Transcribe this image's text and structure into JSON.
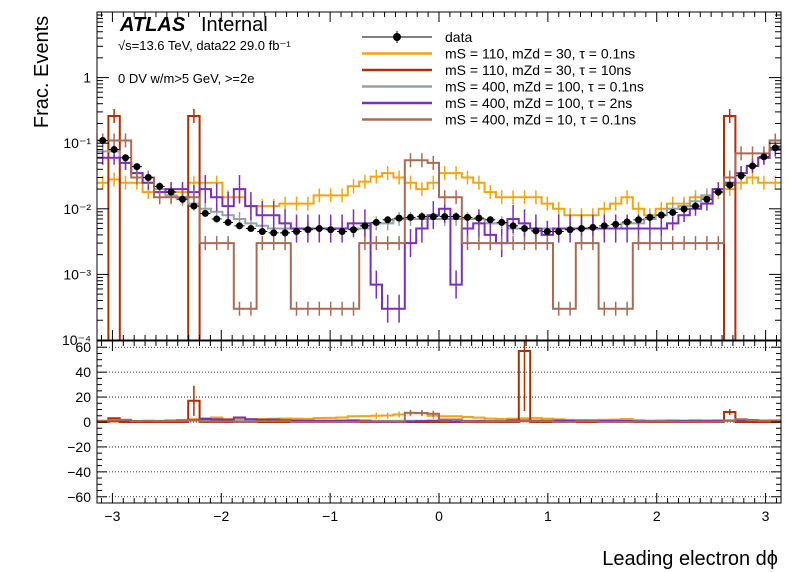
{
  "chart_data": {
    "type": "histogram",
    "experiment": "ATLAS",
    "status": "Internal",
    "info_line1": "√s=13.6 TeV, data22 29.0 fb⁻¹",
    "info_line2": "0 DV w/m>5 GeV, >=2e",
    "xlabel": "Leading electron dϕ",
    "ylabel": "Frac. Events",
    "xlim": [
      -3.1416,
      3.1416
    ],
    "x_ticks": [
      "−3",
      "−2",
      "−1",
      "0",
      "1",
      "2",
      "3"
    ],
    "x_tick_values": [
      -3,
      -2,
      -1,
      0,
      1,
      2,
      3
    ],
    "top_panel": {
      "yscale": "log",
      "ylim": [
        0.0001,
        10
      ],
      "y_ticks": [
        "1",
        "10⁻¹",
        "10⁻²",
        "10⁻³",
        "10⁻⁴"
      ]
    },
    "ratio_panel": {
      "ylim": [
        -65,
        65
      ],
      "y_ticks": [
        "60",
        "40",
        "20",
        "0",
        "−20",
        "−40",
        "−60"
      ],
      "y_tick_values": [
        60,
        40,
        20,
        0,
        -20,
        -40,
        -60
      ],
      "grid": "dotted"
    },
    "legend": [
      {
        "label": "data",
        "kind": "marker",
        "color": "#000000"
      },
      {
        "label": "mS = 110, mZd = 30, τ = 0.1ns",
        "kind": "line",
        "color": "#f2a511"
      },
      {
        "label": "mS = 110, mZd = 30, τ = 10ns",
        "kind": "line",
        "color": "#b22d00"
      },
      {
        "label": "mS = 400, mZd = 100, τ = 0.1ns",
        "kind": "line",
        "color": "#94a4a2"
      },
      {
        "label": "mS = 400, mZd = 100, τ = 2ns",
        "kind": "line",
        "color": "#7a2fbf"
      },
      {
        "label": "mS = 400, mZd = 10, τ = 0.1ns",
        "kind": "line",
        "color": "#a96b56"
      }
    ],
    "bins": 60,
    "series": [
      {
        "name": "data",
        "values": [
          0.11,
          0.08,
          0.06,
          0.044,
          0.03,
          0.022,
          0.018,
          0.014,
          0.011,
          0.0085,
          0.007,
          0.0062,
          0.0055,
          0.005,
          0.0045,
          0.0043,
          0.0043,
          0.0045,
          0.0048,
          0.005,
          0.0048,
          0.0045,
          0.0048,
          0.0055,
          0.0062,
          0.0068,
          0.0072,
          0.0074,
          0.0076,
          0.0076,
          0.0076,
          0.0076,
          0.0074,
          0.0072,
          0.0068,
          0.0062,
          0.0055,
          0.005,
          0.0046,
          0.0045,
          0.0045,
          0.0048,
          0.005,
          0.0052,
          0.0055,
          0.0058,
          0.0063,
          0.0068,
          0.0074,
          0.008,
          0.0088,
          0.0099,
          0.011,
          0.014,
          0.018,
          0.023,
          0.032,
          0.045,
          0.062,
          0.085
        ]
      },
      {
        "name": "mS = 110, mZd = 30, τ = 0.1ns",
        "values": [
          0.025,
          0.028,
          0.025,
          0.025,
          0.018,
          0.018,
          0.018,
          0.018,
          0.025,
          0.025,
          0.025,
          0.015,
          0.015,
          0.011,
          0.011,
          0.011,
          0.012,
          0.012,
          0.012,
          0.016,
          0.016,
          0.016,
          0.022,
          0.026,
          0.031,
          0.035,
          0.03,
          0.025,
          0.02,
          0.025,
          0.035,
          0.035,
          0.03,
          0.025,
          0.018,
          0.015,
          0.015,
          0.015,
          0.015,
          0.012,
          0.01,
          0.008,
          0.008,
          0.008,
          0.01,
          0.012,
          0.015,
          0.01,
          0.008,
          0.01,
          0.012,
          0.012,
          0.015,
          0.015,
          0.018,
          0.02,
          0.025,
          0.03,
          0.025,
          0.025
        ]
      },
      {
        "name": "mS = 110, mZd = 30, τ = 10ns",
        "values": [
          1e-05,
          0.26,
          1e-05,
          1e-05,
          1e-05,
          1e-05,
          1e-05,
          1e-05,
          0.26,
          1e-05,
          1e-05,
          1e-05,
          1e-05,
          1e-05,
          1e-05,
          1e-05,
          1e-05,
          1e-05,
          1e-05,
          1e-05,
          1e-05,
          1e-05,
          1e-05,
          1e-05,
          1e-05,
          1e-05,
          1e-05,
          1e-05,
          1e-05,
          1e-05,
          1e-05,
          1e-05,
          1e-05,
          1e-05,
          1e-05,
          1e-05,
          1e-05,
          1e-05,
          1e-05,
          1e-05,
          1e-05,
          1e-05,
          1e-05,
          1e-05,
          1e-05,
          1e-05,
          1e-05,
          1e-05,
          1e-05,
          1e-05,
          1e-05,
          1e-05,
          1e-05,
          1e-05,
          1e-05,
          0.26,
          1e-05,
          1e-05,
          1e-05,
          1e-05
        ]
      },
      {
        "name": "mS = 400, mZd = 100, τ = 0.1ns",
        "values": [
          0.075,
          0.075,
          0.05,
          0.035,
          0.025,
          0.02,
          0.016,
          0.014,
          0.012,
          0.01,
          0.009,
          0.008,
          0.007,
          0.006,
          0.0055,
          0.005,
          0.005,
          0.005,
          0.005,
          0.005,
          0.005,
          0.005,
          0.005,
          0.005,
          0.006,
          0.006,
          0.007,
          0.007,
          0.007,
          0.007,
          0.007,
          0.007,
          0.007,
          0.007,
          0.006,
          0.006,
          0.005,
          0.005,
          0.005,
          0.005,
          0.005,
          0.005,
          0.005,
          0.005,
          0.005,
          0.005,
          0.006,
          0.006,
          0.007,
          0.008,
          0.01,
          0.011,
          0.013,
          0.016,
          0.02,
          0.025,
          0.035,
          0.045,
          0.06,
          0.08
        ]
      },
      {
        "name": "mS = 400, mZd = 100, τ = 2ns",
        "values": [
          0.06,
          0.06,
          0.05,
          0.035,
          0.025,
          0.018,
          0.02,
          0.02,
          0.018,
          0.02,
          0.015,
          0.011,
          0.02,
          0.011,
          0.008,
          0.008,
          0.006,
          0.005,
          0.005,
          0.005,
          0.005,
          0.005,
          0.006,
          0.006,
          0.0007,
          0.0003,
          0.0003,
          0.003,
          0.005,
          0.008,
          0.01,
          0.0007,
          0.005,
          0.006,
          0.004,
          0.003,
          0.007,
          0.006,
          0.005,
          0.004,
          0.005,
          0.005,
          0.005,
          0.005,
          0.005,
          0.005,
          0.005,
          0.005,
          0.005,
          0.005,
          0.006,
          0.008,
          0.01,
          0.012,
          0.02,
          0.025,
          0.035,
          0.045,
          0.06,
          0.08
        ]
      },
      {
        "name": "mS = 400, mZd = 10, τ = 0.1ns",
        "values": [
          0.11,
          0.11,
          0.11,
          0.03,
          0.03,
          0.015,
          0.015,
          0.015,
          0.015,
          0.003,
          0.003,
          0.003,
          0.0003,
          0.0003,
          0.003,
          0.003,
          0.003,
          0.0003,
          0.0003,
          0.0003,
          0.0003,
          0.0003,
          0.0003,
          0.003,
          0.003,
          0.003,
          0.003,
          0.055,
          0.055,
          0.05,
          0.015,
          0.015,
          0.003,
          0.003,
          0.003,
          0.003,
          0.003,
          0.003,
          0.003,
          0.003,
          0.0003,
          0.0003,
          0.003,
          0.003,
          0.0003,
          0.0003,
          0.0003,
          0.003,
          0.003,
          0.003,
          0.003,
          0.003,
          0.003,
          0.003,
          0.003,
          0.03,
          0.07,
          0.07,
          0.07,
          0.11
        ]
      }
    ],
    "ratio_series": [
      {
        "name": "mS = 110, mZd = 30, τ = 0.1ns",
        "values": [
          0.3,
          0.3,
          0.4,
          0.6,
          0.6,
          0.8,
          1,
          1.3,
          2.3,
          3,
          3.6,
          2.4,
          2.7,
          2.2,
          2.4,
          2.6,
          2.8,
          2.7,
          2.5,
          3.2,
          3.3,
          3.6,
          4.6,
          4.7,
          5,
          5.2,
          6,
          7,
          7,
          5,
          4.6,
          4.6,
          4,
          3.5,
          2.7,
          2.4,
          2.7,
          3,
          3.3,
          2.7,
          2.2,
          1.7,
          1.6,
          1.5,
          1.8,
          2,
          2.4,
          1.5,
          1.1,
          1.3,
          1.4,
          1.2,
          1.4,
          1.1,
          1,
          0.9,
          0.8,
          0.7,
          0.4,
          0.3
        ]
      },
      {
        "name": "mS = 110, mZd = 30, τ = 10ns",
        "values": [
          0,
          3,
          0,
          0,
          0,
          0,
          0,
          0,
          17,
          0,
          0,
          0,
          0,
          0,
          0,
          0,
          0,
          0,
          0,
          0,
          0,
          0,
          0,
          0,
          0,
          0,
          0,
          0,
          0,
          0,
          0,
          0,
          0,
          0,
          0,
          0,
          0,
          0,
          0,
          0,
          0,
          0,
          0,
          0,
          0,
          0,
          0,
          0,
          0,
          0,
          0,
          0,
          0,
          0,
          0,
          8,
          0,
          0,
          0,
          0
        ]
      },
      {
        "name": "mS = 400, mZd = 100, τ = 0.1ns",
        "values": [
          0.7,
          0.9,
          0.8,
          0.8,
          0.8,
          0.9,
          0.9,
          1,
          1.1,
          1.2,
          1.3,
          1.3,
          1.3,
          1.2,
          1.2,
          1.2,
          1.2,
          1.1,
          1,
          1,
          1,
          1.1,
          1,
          0.9,
          1,
          0.9,
          1,
          1,
          1,
          1,
          1,
          1,
          1,
          1,
          0.9,
          1,
          0.9,
          1,
          1.1,
          1.1,
          1.1,
          1,
          1,
          1,
          0.9,
          0.9,
          1,
          0.9,
          0.9,
          1,
          1.1,
          1.1,
          1.2,
          1.1,
          1.1,
          1.1,
          1.1,
          1,
          1,
          0.9
        ]
      },
      {
        "name": "mS = 400, mZd = 100, τ = 2ns",
        "values": [
          0.5,
          0.7,
          0.8,
          0.8,
          0.8,
          0.8,
          1.1,
          1.4,
          1.6,
          2.4,
          2.1,
          1.8,
          3.6,
          2.2,
          1.8,
          1.9,
          1.4,
          1.1,
          1,
          1,
          1,
          1.1,
          1.3,
          1.1,
          0.1,
          0,
          0,
          0.4,
          0.7,
          1,
          1.3,
          0.1,
          0.7,
          0.8,
          0.6,
          0.5,
          1.3,
          1.2,
          1.1,
          0.9,
          1.1,
          1,
          1,
          1,
          0.9,
          0.9,
          0.8,
          0.7,
          0.7,
          0.6,
          0.7,
          0.8,
          0.9,
          0.9,
          1.1,
          1.1,
          1.1,
          1,
          1,
          0.9
        ]
      },
      {
        "name": "mS = 400, mZd = 10, τ = 0.1ns",
        "values": [
          1,
          1.4,
          1.8,
          0.7,
          1,
          0.7,
          0.8,
          1.1,
          1.4,
          0.4,
          0.4,
          0.5,
          0,
          0,
          0.7,
          0.7,
          0.7,
          0,
          0,
          0,
          0,
          0,
          0,
          0.5,
          0.5,
          0.4,
          0.4,
          7.4,
          7.2,
          6.6,
          2,
          2,
          0.4,
          0.4,
          0.4,
          0.5,
          0.5,
          0.6,
          0.7,
          0.7,
          0,
          0,
          0.6,
          0.6,
          0,
          0,
          0,
          0.4,
          0.4,
          0.4,
          0.3,
          0.3,
          0.3,
          0.2,
          0.2,
          1.3,
          2.2,
          1.6,
          1.1,
          1.3
        ]
      }
    ],
    "ratio_spikes": [
      {
        "name": "mS = 110, mZd = 30, τ = 10ns",
        "bin": 37,
        "value": 57
      }
    ]
  }
}
